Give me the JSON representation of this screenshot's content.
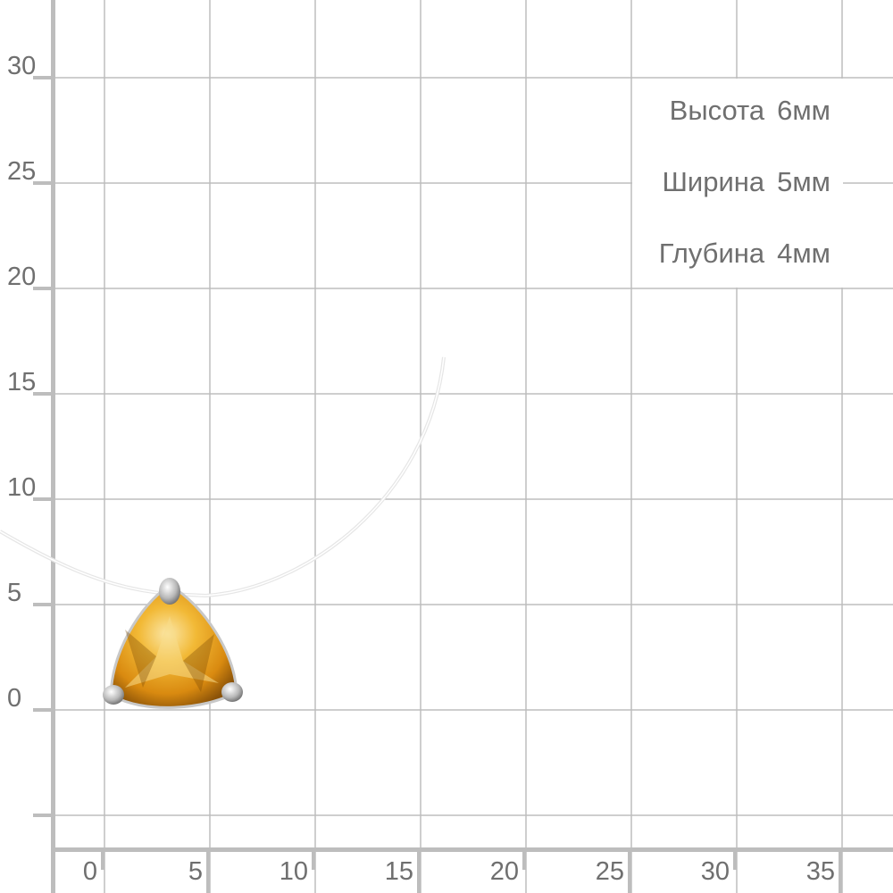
{
  "grid": {
    "x_ticks": [
      "0",
      "5",
      "10",
      "15",
      "20",
      "25",
      "30",
      "35"
    ],
    "y_ticks": [
      "30",
      "25",
      "20",
      "15",
      "10",
      "5",
      "0"
    ],
    "line_color": "#bdbdbd",
    "label_color": "#6f6f6f"
  },
  "dimensions": [
    {
      "label": "Высота",
      "value": "6мм"
    },
    {
      "label": "Ширина",
      "value": "5мм"
    },
    {
      "label": "Глубина",
      "value": "4мм"
    }
  ],
  "product": {
    "stone_color": "#e8a21a",
    "metal_color": "#c8c8c8"
  }
}
